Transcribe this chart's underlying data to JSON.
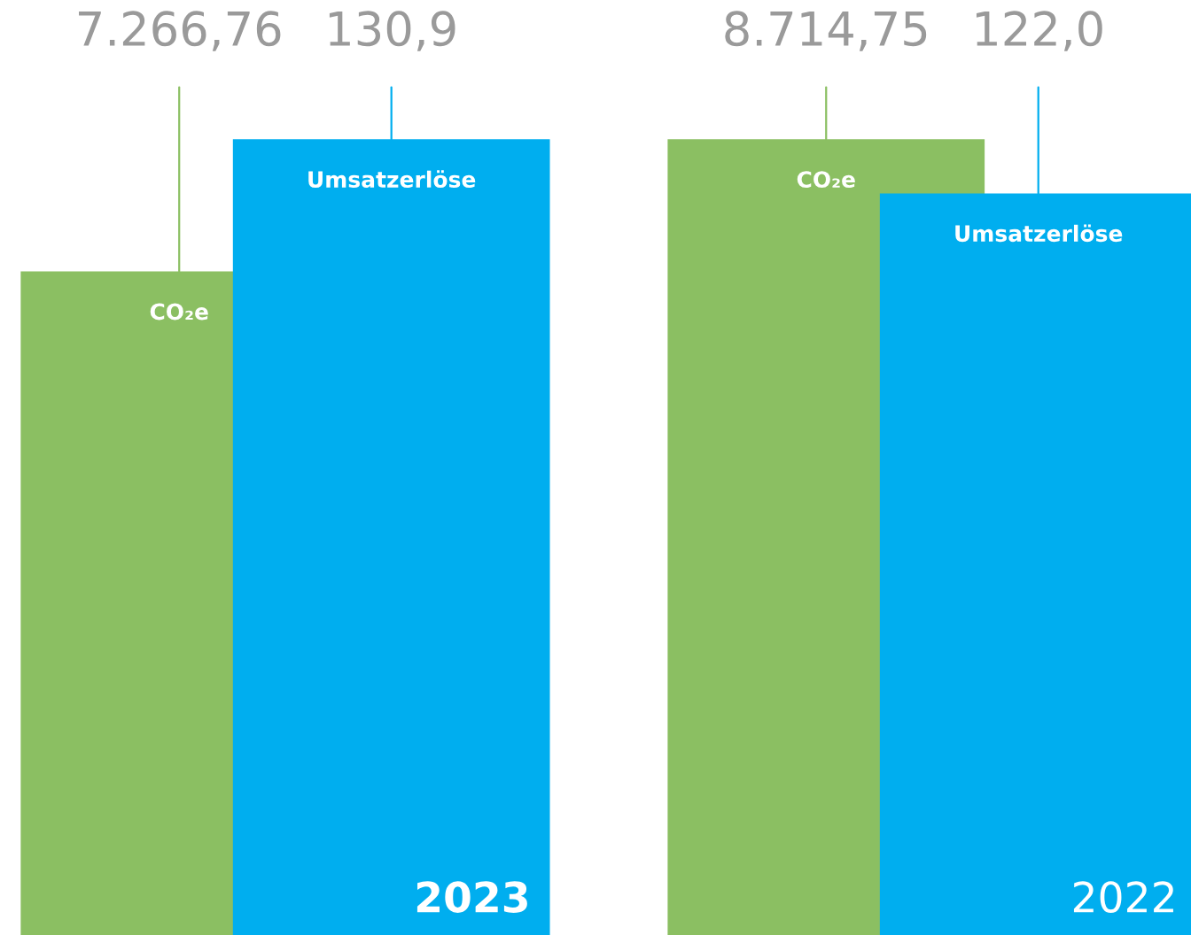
{
  "chart_data": {
    "type": "bar",
    "categories": [
      "2023",
      "2022"
    ],
    "series": [
      {
        "name": "CO₂e",
        "color": "#8bbf62",
        "values": [
          7266.76,
          8714.75
        ],
        "value_labels": [
          "7.266,76",
          "8.714,75"
        ]
      },
      {
        "name": "Umsatzerlöse",
        "color": "#00aeef",
        "values": [
          130.9,
          122.0
        ],
        "value_labels": [
          "130,9",
          "122,0"
        ],
        "axis": "y2"
      }
    ],
    "legend": false
  }
}
